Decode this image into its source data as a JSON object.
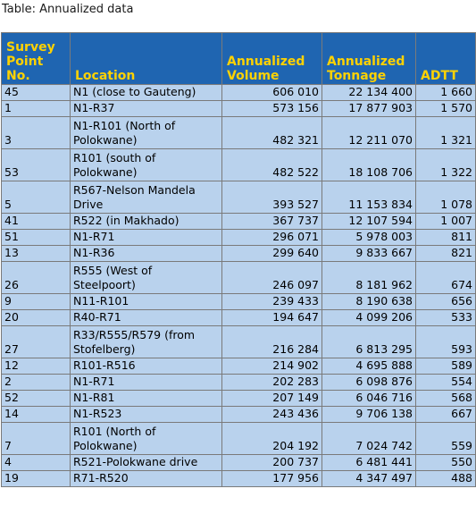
{
  "caption": "Table: Annualized data",
  "columns": [
    "Survey\nPoint\nNo.",
    "Location",
    "Annualized\nVolume",
    "Annualized\nTonnage",
    "ADTT"
  ],
  "rows": [
    {
      "no": "45",
      "location": "N1 (close to Gauteng)",
      "volume": "606 010",
      "tonnage": "22 134 400",
      "adtt": "1 660"
    },
    {
      "no": "1",
      "location": "N1-R37",
      "volume": "573 156",
      "tonnage": "17 877 903",
      "adtt": "1 570"
    },
    {
      "no": "3",
      "location": "N1-R101 (North of\nPolokwane)",
      "volume": "482 321",
      "tonnage": "12 211 070",
      "adtt": "1 321"
    },
    {
      "no": "53",
      "location": "R101 (south of\nPolokwane)",
      "volume": "482 522",
      "tonnage": "18 108 706",
      "adtt": "1 322"
    },
    {
      "no": "5",
      "location": "R567-Nelson Mandela\nDrive",
      "volume": "393 527",
      "tonnage": "11 153 834",
      "adtt": "1 078"
    },
    {
      "no": "41",
      "location": "R522 (in Makhado)",
      "volume": "367 737",
      "tonnage": "12 107 594",
      "adtt": "1 007"
    },
    {
      "no": "51",
      "location": "N1-R71",
      "volume": "296 071",
      "tonnage": "5 978 003",
      "adtt": "811"
    },
    {
      "no": "13",
      "location": "N1-R36",
      "volume": "299 640",
      "tonnage": "9 833 667",
      "adtt": "821"
    },
    {
      "no": "26",
      "location": "R555 (West of\nSteelpoort)",
      "volume": "246 097",
      "tonnage": "8 181 962",
      "adtt": "674"
    },
    {
      "no": "9",
      "location": "N11-R101",
      "volume": "239 433",
      "tonnage": "8 190 638",
      "adtt": "656"
    },
    {
      "no": "20",
      "location": "R40-R71",
      "volume": "194 647",
      "tonnage": "4 099 206",
      "adtt": "533"
    },
    {
      "no": "27",
      "location": "R33/R555/R579 (from\nStofelberg)",
      "volume": "216 284",
      "tonnage": "6 813 295",
      "adtt": "593"
    },
    {
      "no": "12",
      "location": "R101-R516",
      "volume": "214 902",
      "tonnage": "4 695 888",
      "adtt": "589"
    },
    {
      "no": "2",
      "location": "N1-R71",
      "volume": "202 283",
      "tonnage": "6 098 876",
      "adtt": "554"
    },
    {
      "no": "52",
      "location": "N1-R81",
      "volume": "207 149",
      "tonnage": "6 046 716",
      "adtt": "568"
    },
    {
      "no": "14",
      "location": "N1-R523",
      "volume": "243 436",
      "tonnage": "9 706 138",
      "adtt": "667"
    },
    {
      "no": "7",
      "location": "R101 (North of\nPolokwane)",
      "volume": "204 192",
      "tonnage": "7 024 742",
      "adtt": "559"
    },
    {
      "no": "4",
      "location": "R521-Polokwane drive",
      "volume": "200 737",
      "tonnage": "6 481 441",
      "adtt": "550"
    },
    {
      "no": "19",
      "location": "R71-R520",
      "volume": "177 956",
      "tonnage": "4 347 497",
      "adtt": "488"
    }
  ],
  "colors": {
    "header_bg": "#1f65b1",
    "header_text": "#ffd200",
    "cell_bg": "#b9d2ed"
  }
}
